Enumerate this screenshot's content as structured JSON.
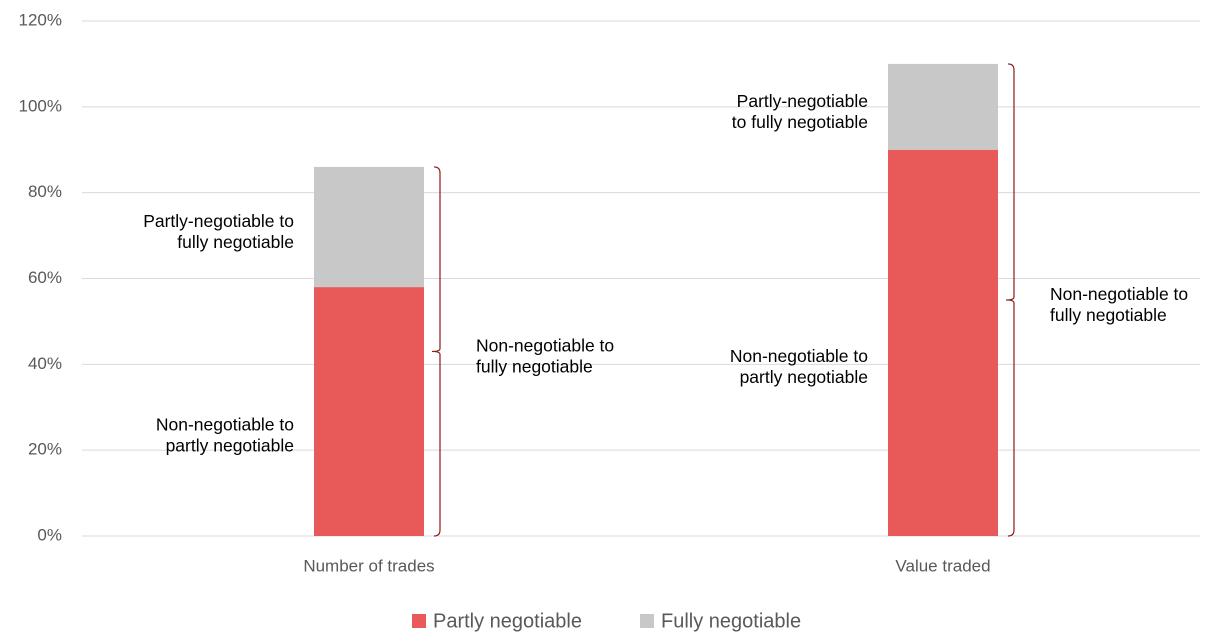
{
  "chart_data": {
    "type": "bar",
    "stacked": true,
    "categories": [
      "Number of trades",
      "Value traded"
    ],
    "series": [
      {
        "name": "Partly negotiable",
        "color": "#e85a5a",
        "values": [
          58,
          90
        ]
      },
      {
        "name": "Fully negotiable",
        "color": "#c8c8c8",
        "values": [
          28,
          20
        ]
      }
    ],
    "ylim": [
      0,
      120
    ],
    "yticks": [
      {
        "value": 0,
        "label": "0%"
      },
      {
        "value": 20,
        "label": "20%"
      },
      {
        "value": 40,
        "label": "40%"
      },
      {
        "value": 60,
        "label": "60%"
      },
      {
        "value": 80,
        "label": "80%"
      },
      {
        "value": 100,
        "label": "100%"
      },
      {
        "value": 120,
        "label": "120%"
      }
    ],
    "grid": true,
    "legend": "bottom",
    "annotations": [
      [
        [
          "Non-negotiable to",
          "partly negotiable"
        ],
        [
          "Partly-negotiable to",
          "fully negotiable"
        ],
        [
          "Non-negotiable to",
          "fully negotiable"
        ]
      ],
      [
        [
          "Non-negotiable to",
          "partly negotiable"
        ],
        [
          "Partly-negotiable",
          "to fully negotiable"
        ],
        [
          "Non-negotiable to",
          "fully negotiable"
        ]
      ]
    ]
  }
}
